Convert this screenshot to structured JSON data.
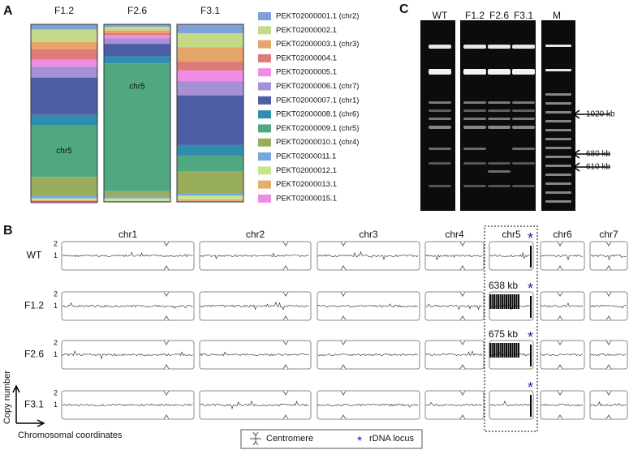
{
  "panel_labels": [
    "A",
    "B",
    "C"
  ],
  "chart_data": {
    "type": "stacked-bar",
    "categories": [
      "F1.2",
      "F2.6",
      "F3.1"
    ],
    "ylim": [
      0,
      100
    ],
    "series": [
      {
        "name": "PEKT02000001.1 (chr2)",
        "color": "#7ea2d8",
        "values": [
          3,
          1.5,
          5
        ]
      },
      {
        "name": "PEKT02000002.1",
        "color": "#c4da88",
        "values": [
          7,
          2,
          8
        ]
      },
      {
        "name": "PEKT02000003.1 (chr3)",
        "color": "#e5a56a",
        "values": [
          4,
          1.5,
          8
        ]
      },
      {
        "name": "PEKT02000004.1",
        "color": "#de7a78",
        "values": [
          6,
          1,
          5
        ]
      },
      {
        "name": "PEKT02000005.1",
        "color": "#ee8ce6",
        "values": [
          4,
          2,
          6
        ]
      },
      {
        "name": "PEKT02000006.1 (chr7)",
        "color": "#a690d6",
        "values": [
          6,
          3,
          8
        ]
      },
      {
        "name": "PEKT02000007.1 (chr1)",
        "color": "#4e5ea6",
        "values": [
          21,
          7,
          28
        ]
      },
      {
        "name": "PEKT02000008.1 (chr6)",
        "color": "#2f8eb0",
        "values": [
          6,
          4,
          6
        ]
      },
      {
        "name": "PEKT02000009.1 (chr5)",
        "color": "#50a880",
        "values": [
          29,
          72,
          9
        ],
        "labels": [
          "chr5",
          "chr5",
          null
        ]
      },
      {
        "name": "PEKT02000010.1 (chr4)",
        "color": "#98ae5c",
        "values": [
          10.5,
          3,
          12
        ]
      },
      {
        "name": "PEKT02000011.1",
        "color": "#78a6e0",
        "values": [
          1.5,
          1,
          1.5
        ]
      },
      {
        "name": "PEKT02000012.1",
        "color": "#c6e68e",
        "values": [
          1,
          1.5,
          2
        ]
      },
      {
        "name": "PEKT02000013.1",
        "color": "#e6ae6e",
        "values": [
          1,
          0.5,
          1
        ]
      },
      {
        "name": "PEKT02000015.1",
        "color": "#ec8ede",
        "values": [
          1,
          0,
          0.5
        ]
      }
    ]
  },
  "copy_number": {
    "chromosomes": [
      "chr1",
      "chr2",
      "chr3",
      "chr4",
      "chr5",
      "chr6",
      "chr7"
    ],
    "samples": [
      "WT",
      "F1.2",
      "F2.6",
      "F3.1"
    ],
    "ticks": [
      2,
      1
    ],
    "annotations": [
      "638 kb",
      "675 kb"
    ],
    "rdna_marker": "*",
    "y_label": "Copy number",
    "x_label": "Chromosomal coordinates",
    "legend": [
      "Centromere",
      "rDNA locus"
    ]
  },
  "gel": {
    "lanes": [
      "WT",
      "F1.2",
      "F2.6",
      "F3.1",
      "M"
    ],
    "markers": [
      "1020 kb",
      "680 kb",
      "610 kb"
    ]
  }
}
